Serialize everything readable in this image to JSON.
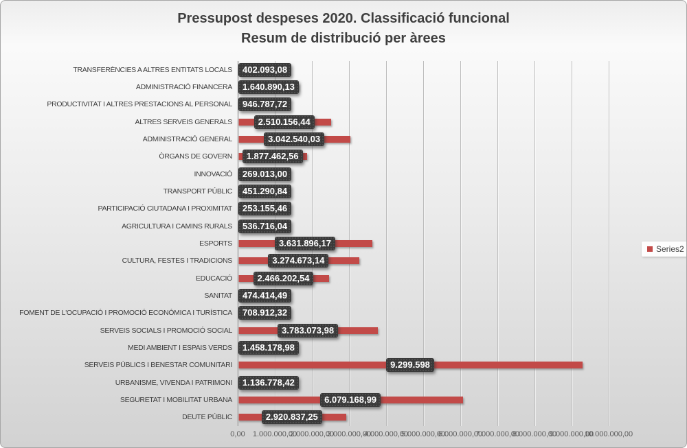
{
  "title": {
    "line1": "Pressupost despeses 2020. Classificació funcional",
    "line2": "Resum de distribució per àrees"
  },
  "legend": {
    "label": "Series2"
  },
  "colors": {
    "bar": "#c24a48",
    "label_box": "#3a3a3a",
    "label_text": "#ffffff",
    "gridline": "#bcbcbc",
    "axis_line": "#6f6f6f",
    "title_text": "#3f3f3f",
    "category_text": "#3c3c3c",
    "tick_text": "#595959"
  },
  "chart_data": {
    "type": "bar",
    "orientation": "horizontal",
    "title": "Pressupost despeses 2020. Classificació funcional",
    "subtitle": "Resum de distribució per àrees",
    "xlabel": "",
    "ylabel": "",
    "grid": "vertical",
    "legend_entries": [
      "Series2"
    ],
    "legend_position": "right",
    "xlim": [
      0,
      10000000
    ],
    "categories": [
      "TRANSFERÈNCIES A ALTRES ENTITATS LOCALS",
      "ADMINISTRACIÓ FINANCERA",
      "PRODUCTIVITAT I ALTRES PRESTACIONS AL PERSONAL",
      "ALTRES SERVEIS GENERALS",
      "ADMINISTRACIÓ GENERAL",
      "ÒRGANS DE GOVERN",
      "INNOVACIÓ",
      "TRANSPORT PÚBLIC",
      "PARTICIPACIÓ CIUTADANA I PROXIMITAT",
      "AGRICULTURA I CAMINS RURALS",
      "ESPORTS",
      "CULTURA, FESTES I TRADICIONS",
      "EDUCACIÓ",
      "SANITAT",
      "FOMENT DE L'OCUPACIÓ I PROMOCIÓ ECONÓMICA I TURÍSTICA",
      "SERVEIS SOCIALS I PROMOCIÓ SOCIAL",
      "MEDI AMBIENT I ESPAIS VERDS",
      "SERVEIS PÚBLICS I BENESTAR COMUNITARI",
      "URBANISME, VIVENDA I PATRIMONI",
      "SEGURETAT I MOBILITAT URBANA",
      "DEUTE PÚBLIC"
    ],
    "values": [
      402093.08,
      1640890.13,
      946787.72,
      2510156.44,
      3042540.03,
      1877462.56,
      269013.0,
      451290.84,
      253155.46,
      536716.04,
      3631896.17,
      3274673.14,
      2466202.54,
      474414.49,
      708912.32,
      3783073.98,
      1458178.98,
      9299598,
      1136778.42,
      6079168.99,
      2920837.25
    ],
    "value_labels": [
      "402.093,08",
      "1.640.890,13",
      "946.787,72",
      "2.510.156,44",
      "3.042.540,03",
      "1.877.462,56",
      "269.013,00",
      "451.290,84",
      "253.155,46",
      "536.716,04",
      "3.631.896,17",
      "3.274.673,14",
      "2.466.202,54",
      "474.414,49",
      "708.912,32",
      "3.783.073,98",
      "1.458.178,98",
      "9.299.598",
      "1.136.778,42",
      "6.079.168,99",
      "2.920.837,25"
    ],
    "x_tick_values": [
      0,
      1000000,
      2000000,
      3000000,
      4000000,
      5000000,
      6000000,
      7000000,
      8000000,
      9000000,
      10000000
    ],
    "x_tick_labels": [
      "0,00",
      "1.000.000,00",
      "2.000.000,00",
      "3.000.000,00",
      "4.000.000,00",
      "5.000.000,00",
      "6.000.000,00",
      "7.000.000,00",
      "8.000.000,00",
      "9.000.000,00",
      "10.000.000,00"
    ]
  }
}
